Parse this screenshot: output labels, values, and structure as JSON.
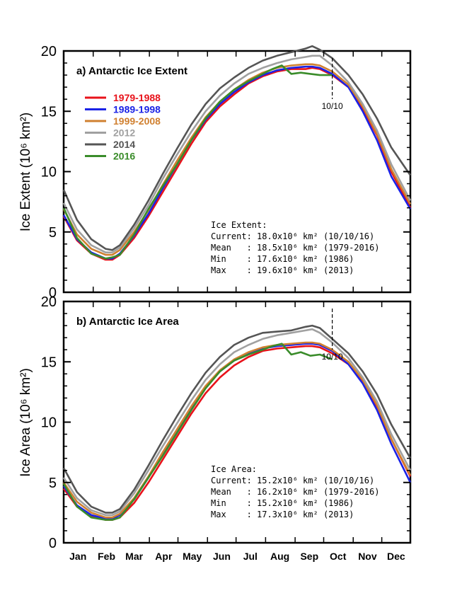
{
  "chart_data": [
    {
      "type": "line",
      "title": "a) Antarctic Ice Extent",
      "ylabel": "Ice Extent (10⁶ km²)",
      "ylim": [
        0,
        20
      ],
      "yticks": [
        "0",
        "5",
        "10",
        "15",
        "20"
      ],
      "months": [
        "Jan",
        "Feb",
        "Mar",
        "Apr",
        "May",
        "Jun",
        "Jul",
        "Aug",
        "Sep",
        "Oct",
        "Nov",
        "Dec"
      ],
      "marker_label": "10/10",
      "marker_day": 283,
      "legend": [
        {
          "label": "1979-1988",
          "color": "#e8121a"
        },
        {
          "label": "1989-1998",
          "color": "#1a22e6"
        },
        {
          "label": "1999-2008",
          "color": "#d08030"
        },
        {
          "label": "2012",
          "color": "#a0a0a0"
        },
        {
          "label": "2014",
          "color": "#555555"
        },
        {
          "label": "2016",
          "color": "#3a8c2a"
        }
      ],
      "stats": [
        "Ice Extent:",
        "Current: 18.0x10⁶ km² (10/10/16)",
        "Mean   : 18.5x10⁶ km² (1979-2016)",
        "Min    : 17.6x10⁶ km² (1986)",
        "Max    : 19.6x10⁶ km² (2013)"
      ],
      "series": [
        {
          "name": "1979-1988",
          "color": "#e8121a",
          "x": [
            1,
            15,
            30,
            45,
            52,
            60,
            75,
            90,
            105,
            120,
            135,
            150,
            165,
            180,
            195,
            210,
            225,
            240,
            255,
            262,
            270,
            283,
            300,
            315,
            330,
            345,
            365
          ],
          "y": [
            6.3,
            4.3,
            3.2,
            2.7,
            2.7,
            3.1,
            4.5,
            6.3,
            8.3,
            10.3,
            12.3,
            14.1,
            15.4,
            16.4,
            17.3,
            17.9,
            18.3,
            18.5,
            18.5,
            18.6,
            18.5,
            18.0,
            17.0,
            15.2,
            13.0,
            10.0,
            7.0
          ]
        },
        {
          "name": "1989-1998",
          "color": "#1a22e6",
          "x": [
            1,
            15,
            30,
            45,
            52,
            60,
            75,
            90,
            105,
            120,
            135,
            150,
            165,
            180,
            195,
            210,
            225,
            240,
            255,
            262,
            270,
            283,
            300,
            315,
            330,
            345,
            365
          ],
          "y": [
            6.4,
            4.4,
            3.3,
            2.8,
            2.8,
            3.2,
            4.7,
            6.5,
            8.6,
            10.6,
            12.6,
            14.3,
            15.6,
            16.6,
            17.4,
            18.0,
            18.4,
            18.6,
            18.7,
            18.7,
            18.6,
            18.1,
            17.0,
            15.0,
            12.6,
            9.6,
            6.9
          ]
        },
        {
          "name": "1999-2008",
          "color": "#d08030",
          "x": [
            1,
            15,
            30,
            45,
            52,
            60,
            75,
            90,
            105,
            120,
            135,
            150,
            165,
            180,
            195,
            210,
            225,
            240,
            255,
            262,
            270,
            283,
            300,
            315,
            330,
            345,
            365
          ],
          "y": [
            6.9,
            4.8,
            3.6,
            3.1,
            3.1,
            3.5,
            5.0,
            6.8,
            8.9,
            10.9,
            12.8,
            14.5,
            15.8,
            16.8,
            17.6,
            18.2,
            18.6,
            18.8,
            18.9,
            18.9,
            18.8,
            18.3,
            17.2,
            15.4,
            13.1,
            10.2,
            7.3
          ]
        },
        {
          "name": "2012",
          "color": "#a0a0a0",
          "x": [
            1,
            15,
            30,
            45,
            52,
            60,
            75,
            90,
            105,
            120,
            135,
            150,
            165,
            180,
            195,
            210,
            225,
            240,
            255,
            262,
            270,
            283,
            300,
            315,
            330,
            345,
            365
          ],
          "y": [
            7.4,
            5.2,
            3.9,
            3.3,
            3.3,
            3.7,
            5.3,
            7.2,
            9.4,
            11.4,
            13.3,
            15.0,
            16.3,
            17.3,
            18.1,
            18.6,
            19.0,
            19.3,
            19.5,
            19.6,
            19.6,
            18.8,
            17.4,
            15.6,
            13.4,
            10.6,
            7.6
          ]
        },
        {
          "name": "2014",
          "color": "#555555",
          "x": [
            1,
            15,
            30,
            45,
            52,
            60,
            75,
            90,
            105,
            120,
            135,
            150,
            165,
            180,
            195,
            210,
            225,
            240,
            255,
            262,
            270,
            283,
            300,
            315,
            330,
            345,
            365
          ],
          "y": [
            8.5,
            6.0,
            4.4,
            3.6,
            3.5,
            3.9,
            5.6,
            7.6,
            9.8,
            11.9,
            13.9,
            15.6,
            16.9,
            17.8,
            18.6,
            19.2,
            19.6,
            19.9,
            20.2,
            20.4,
            20.1,
            19.4,
            18.0,
            16.4,
            14.4,
            12.0,
            9.7
          ]
        },
        {
          "name": "2016",
          "color": "#3a8c2a",
          "x": [
            1,
            15,
            30,
            45,
            52,
            60,
            75,
            90,
            105,
            120,
            135,
            150,
            165,
            180,
            195,
            210,
            220,
            230,
            240,
            250,
            260,
            270,
            283
          ],
          "y": [
            7.0,
            4.5,
            3.2,
            2.8,
            2.9,
            3.1,
            4.8,
            6.9,
            8.8,
            10.6,
            12.6,
            14.4,
            15.8,
            16.8,
            17.5,
            18.1,
            18.5,
            18.8,
            18.1,
            18.2,
            18.1,
            18.0,
            18.0
          ]
        }
      ]
    },
    {
      "type": "line",
      "title": "b) Antarctic Ice Area",
      "ylabel": "Ice Area (10⁶ km²)",
      "ylim": [
        0,
        20
      ],
      "yticks": [
        "0",
        "5",
        "10",
        "15",
        "20"
      ],
      "months": [
        "Jan",
        "Feb",
        "Mar",
        "Apr",
        "May",
        "Jun",
        "Jul",
        "Aug",
        "Sep",
        "Oct",
        "Nov",
        "Dec"
      ],
      "marker_label": "10/10",
      "marker_day": 283,
      "stats": [
        "Ice Area:",
        "Current: 15.2x10⁶ km² (10/10/16)",
        "Mean   : 16.2x10⁶ km² (1979-2016)",
        "Min    : 15.2x10⁶ km² (1986)",
        "Max    : 17.3x10⁶ km² (2013)"
      ],
      "series": [
        {
          "name": "1979-1988",
          "color": "#e8121a",
          "x": [
            1,
            15,
            30,
            45,
            52,
            60,
            75,
            90,
            105,
            120,
            135,
            150,
            165,
            180,
            195,
            210,
            225,
            240,
            255,
            262,
            270,
            283,
            300,
            315,
            330,
            345,
            365
          ],
          "y": [
            4.5,
            3.0,
            2.2,
            1.9,
            1.9,
            2.1,
            3.3,
            5.0,
            6.9,
            8.8,
            10.7,
            12.4,
            13.7,
            14.7,
            15.4,
            15.9,
            16.1,
            16.2,
            16.3,
            16.3,
            16.2,
            15.7,
            14.8,
            13.3,
            11.3,
            8.6,
            5.5
          ]
        },
        {
          "name": "1989-1998",
          "color": "#1a22e6",
          "x": [
            1,
            15,
            30,
            45,
            52,
            60,
            75,
            90,
            105,
            120,
            135,
            150,
            165,
            180,
            195,
            210,
            225,
            240,
            255,
            262,
            270,
            283,
            300,
            315,
            330,
            345,
            365
          ],
          "y": [
            4.7,
            3.1,
            2.3,
            2.0,
            2.0,
            2.3,
            3.6,
            5.4,
            7.4,
            9.3,
            11.2,
            12.9,
            14.2,
            15.1,
            15.7,
            16.1,
            16.3,
            16.4,
            16.5,
            16.5,
            16.4,
            15.9,
            14.8,
            13.2,
            11.0,
            8.2,
            5.0
          ]
        },
        {
          "name": "1999-2008",
          "color": "#d08030",
          "x": [
            1,
            15,
            30,
            45,
            52,
            60,
            75,
            90,
            105,
            120,
            135,
            150,
            165,
            180,
            195,
            210,
            225,
            240,
            255,
            262,
            270,
            283,
            300,
            315,
            330,
            345,
            365
          ],
          "y": [
            5.0,
            3.4,
            2.5,
            2.1,
            2.1,
            2.4,
            3.7,
            5.5,
            7.5,
            9.4,
            11.3,
            13.0,
            14.3,
            15.2,
            15.8,
            16.2,
            16.4,
            16.5,
            16.6,
            16.6,
            16.5,
            16.0,
            15.0,
            13.5,
            11.4,
            8.6,
            5.6
          ]
        },
        {
          "name": "2012",
          "color": "#a0a0a0",
          "x": [
            1,
            15,
            30,
            45,
            52,
            60,
            75,
            90,
            105,
            120,
            135,
            150,
            165,
            180,
            195,
            210,
            225,
            240,
            255,
            262,
            270,
            283,
            300,
            315,
            330,
            345,
            365
          ],
          "y": [
            5.4,
            3.7,
            2.7,
            2.3,
            2.3,
            2.6,
            4.1,
            6.0,
            8.0,
            9.9,
            11.8,
            13.5,
            14.8,
            15.8,
            16.4,
            16.9,
            17.2,
            17.4,
            17.6,
            17.7,
            17.4,
            16.6,
            15.3,
            13.7,
            11.7,
            9.0,
            6.0
          ]
        },
        {
          "name": "2014",
          "color": "#555555",
          "x": [
            1,
            15,
            30,
            45,
            52,
            60,
            75,
            90,
            105,
            120,
            135,
            150,
            165,
            180,
            195,
            210,
            225,
            240,
            255,
            262,
            270,
            283,
            300,
            315,
            330,
            345,
            365
          ],
          "y": [
            6.2,
            4.2,
            3.0,
            2.5,
            2.5,
            2.8,
            4.4,
            6.4,
            8.5,
            10.5,
            12.4,
            14.1,
            15.4,
            16.4,
            17.0,
            17.4,
            17.5,
            17.6,
            17.9,
            18.0,
            17.8,
            16.9,
            15.7,
            14.2,
            12.3,
            9.8,
            7.0
          ]
        },
        {
          "name": "2016",
          "color": "#3a8c2a",
          "x": [
            1,
            15,
            30,
            45,
            52,
            60,
            75,
            90,
            105,
            120,
            135,
            150,
            165,
            180,
            195,
            210,
            220,
            230,
            240,
            250,
            260,
            270,
            283
          ],
          "y": [
            4.9,
            3.0,
            2.1,
            1.9,
            1.9,
            2.1,
            3.6,
            5.4,
            7.2,
            9.1,
            11.0,
            12.8,
            14.2,
            15.1,
            15.6,
            16.0,
            16.3,
            16.5,
            15.6,
            15.8,
            15.5,
            15.6,
            15.2
          ]
        }
      ]
    }
  ]
}
